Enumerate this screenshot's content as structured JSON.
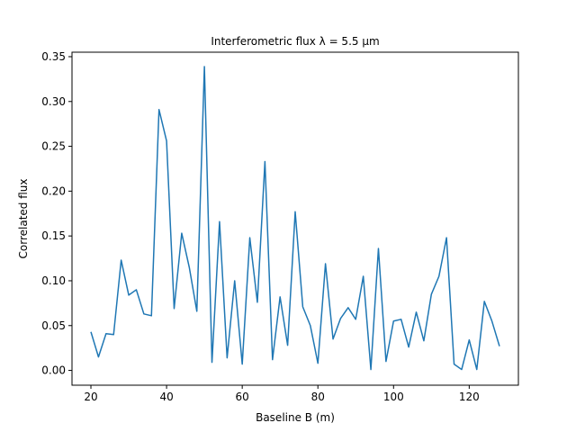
{
  "chart_data": {
    "type": "line",
    "title": "Interferometric flux λ = 5.5 μm",
    "xlabel": "Baseline B (m)",
    "ylabel": "Correlated flux",
    "xlim": [
      15,
      133
    ],
    "ylim": [
      -0.0165,
      0.355
    ],
    "xticks": [
      20,
      40,
      60,
      80,
      100,
      120
    ],
    "yticks": [
      0.0,
      0.05,
      0.1,
      0.15,
      0.2,
      0.25,
      0.3,
      0.35
    ],
    "ytick_labels": [
      "0.00",
      "0.05",
      "0.10",
      "0.15",
      "0.20",
      "0.25",
      "0.30",
      "0.35"
    ],
    "grid": false,
    "color": "#1f77b4",
    "series": [
      {
        "x": [
          20,
          22,
          24,
          26,
          28,
          30,
          32,
          34,
          36,
          38,
          40,
          42,
          44,
          46,
          48,
          50,
          52,
          54,
          56,
          58,
          60,
          62,
          64,
          66,
          68,
          70,
          72,
          74,
          76,
          78,
          80,
          82,
          84,
          86,
          88,
          90,
          92,
          94,
          96,
          98,
          100,
          102,
          104,
          106,
          108,
          110,
          112,
          114,
          116,
          118,
          120,
          122,
          124,
          126,
          128
        ],
        "values": [
          0.043,
          0.015,
          0.041,
          0.04,
          0.123,
          0.084,
          0.09,
          0.063,
          0.061,
          0.291,
          0.256,
          0.069,
          0.153,
          0.115,
          0.066,
          0.339,
          0.009,
          0.166,
          0.014,
          0.1,
          0.007,
          0.148,
          0.076,
          0.233,
          0.012,
          0.082,
          0.028,
          0.177,
          0.071,
          0.05,
          0.008,
          0.119,
          0.035,
          0.058,
          0.07,
          0.057,
          0.105,
          0.001,
          0.136,
          0.01,
          0.055,
          0.057,
          0.026,
          0.065,
          0.033,
          0.085,
          0.105,
          0.148,
          0.007,
          0.001,
          0.034,
          0.001,
          0.077,
          0.055,
          0.027
        ]
      }
    ]
  }
}
